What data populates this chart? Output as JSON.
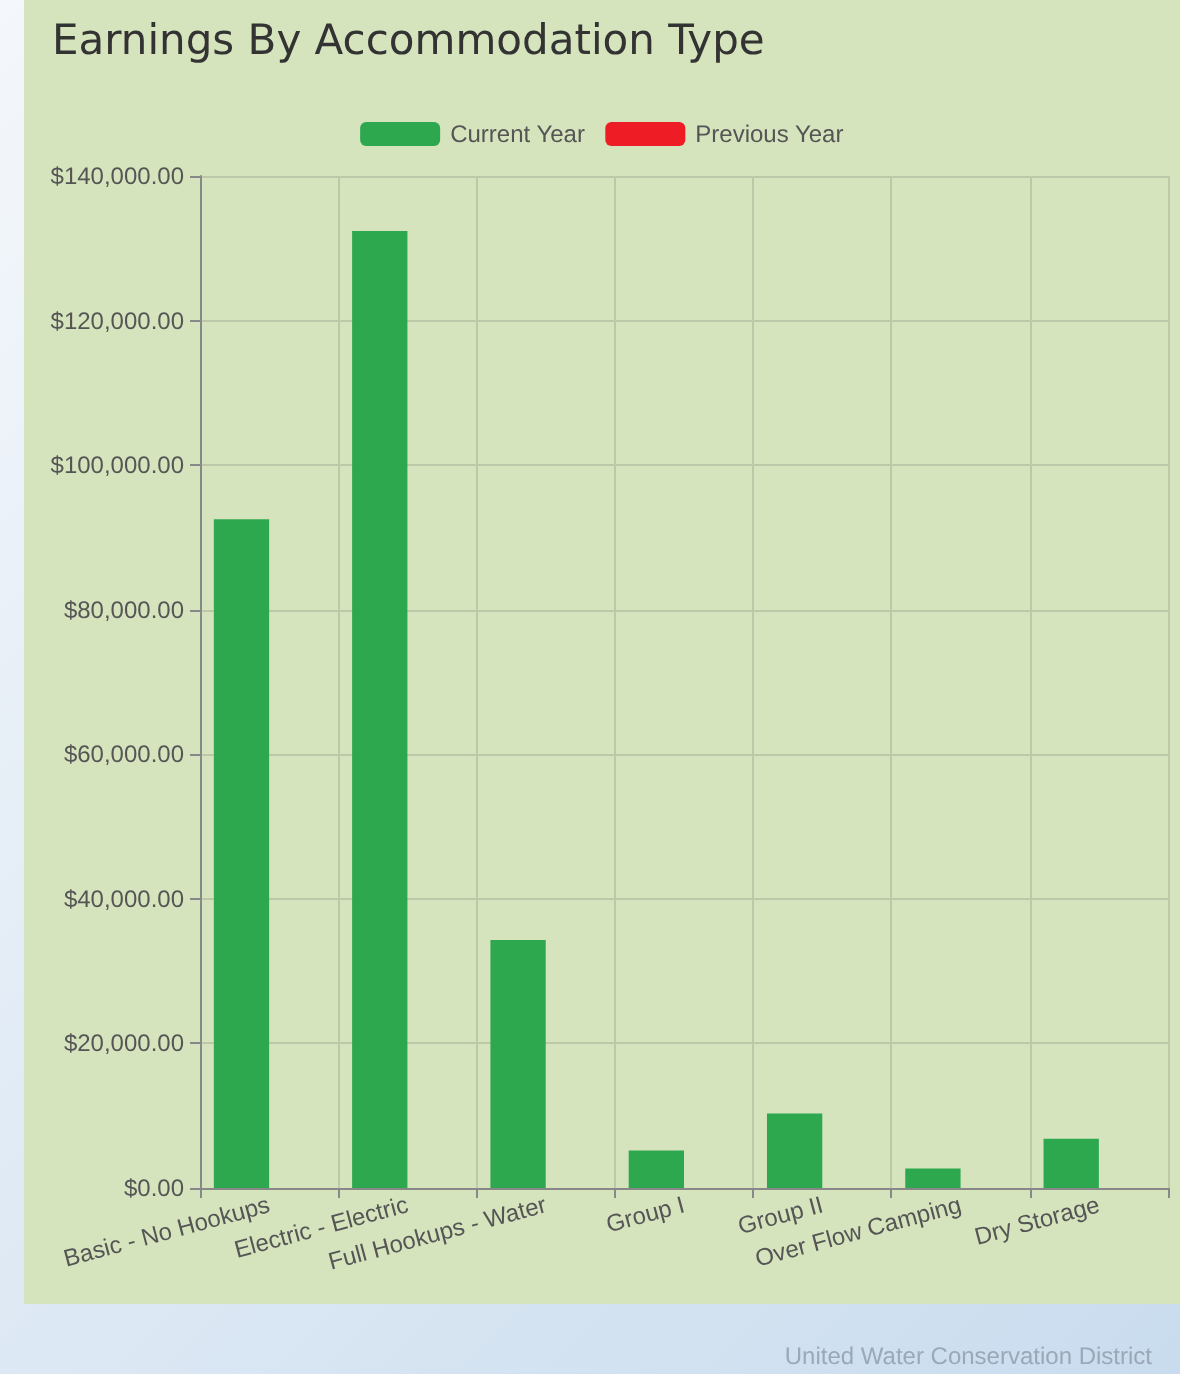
{
  "chart_data": {
    "type": "bar",
    "title": "Earnings By Accommodation Type",
    "categories": [
      "Basic - No Hookups",
      "Electric - Electric",
      "Full Hookups - Water",
      "Group I",
      "Group II",
      "Over Flow Camping",
      "Dry Storage"
    ],
    "series": [
      {
        "name": "Current Year",
        "color": "#2ea84f",
        "values": [
          92500,
          132400,
          34300,
          5200,
          10300,
          2700,
          6800
        ]
      },
      {
        "name": "Previous Year",
        "color": "#ee1c25",
        "values": [
          0,
          0,
          0,
          0,
          0,
          0,
          0
        ]
      }
    ],
    "ylim": [
      0,
      140000
    ],
    "yticks": [
      {
        "value": 0,
        "label": "$0.00"
      },
      {
        "value": 20000,
        "label": "$20,000.00"
      },
      {
        "value": 40000,
        "label": "$40,000.00"
      },
      {
        "value": 60000,
        "label": "$60,000.00"
      },
      {
        "value": 80000,
        "label": "$80,000.00"
      },
      {
        "value": 100000,
        "label": "$100,000.00"
      },
      {
        "value": 120000,
        "label": "$120,000.00"
      },
      {
        "value": 140000,
        "label": "$140,000.00"
      }
    ],
    "grid": true,
    "legend": "top",
    "annotations": [
      "United Water Conservation District"
    ]
  }
}
